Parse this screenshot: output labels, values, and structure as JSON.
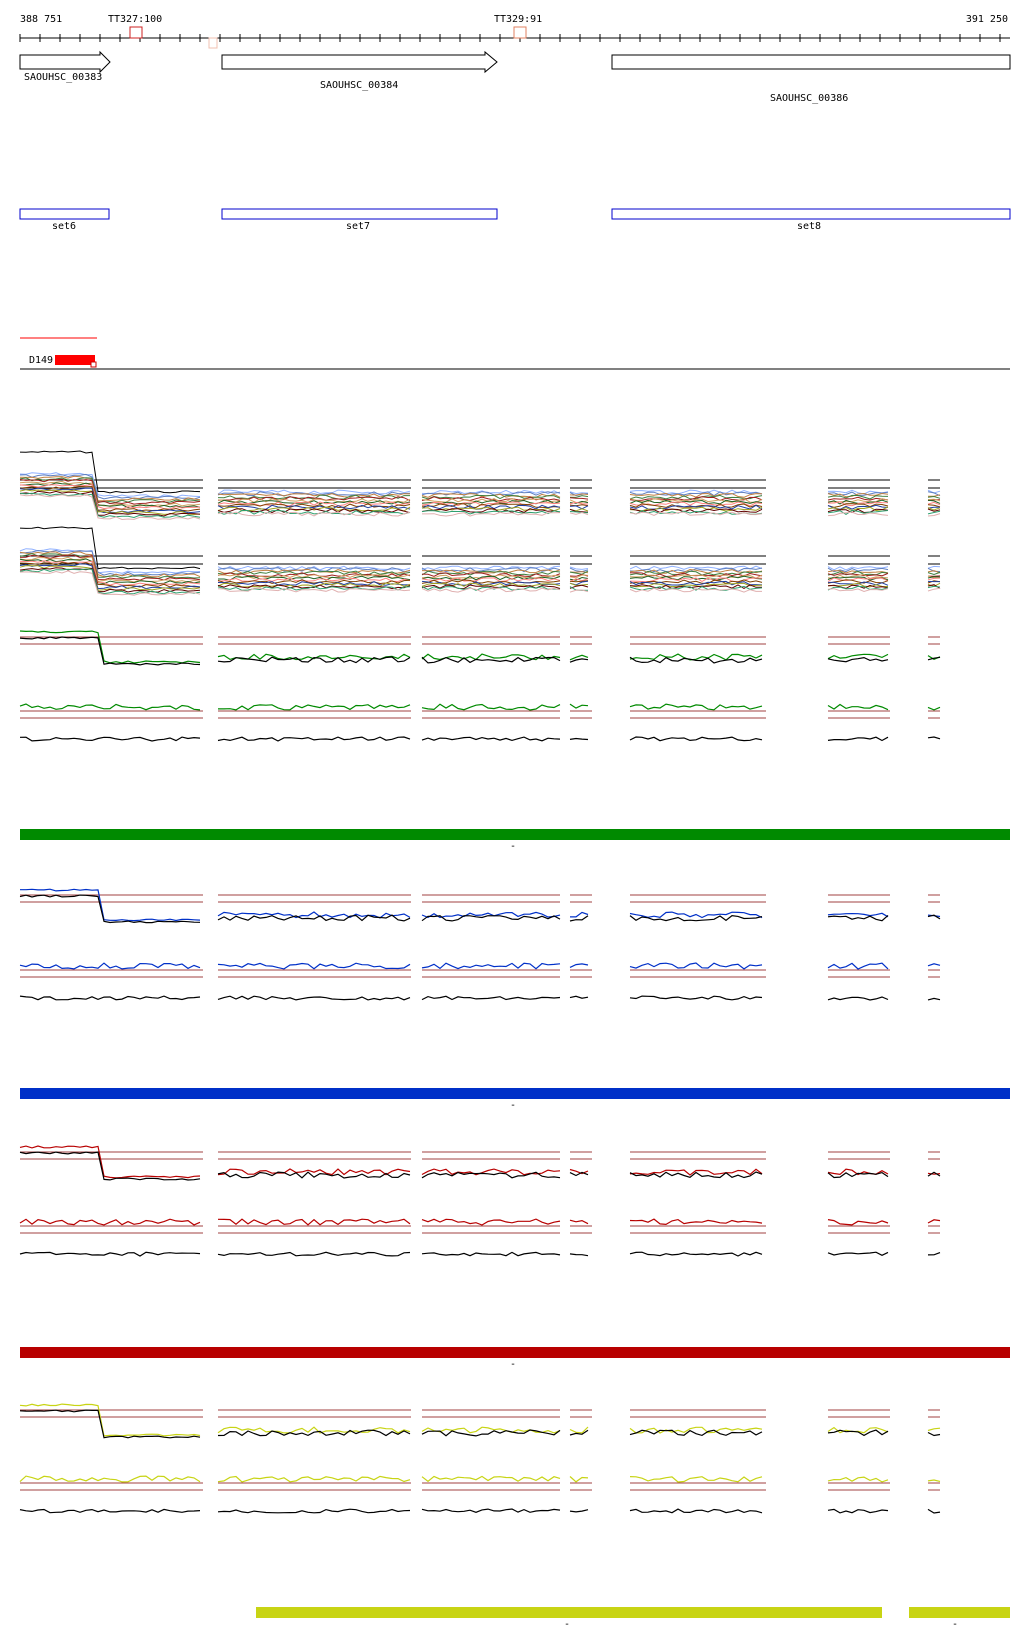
{
  "ruler": {
    "start_label": "388 751",
    "end_label": "391 250",
    "terminators": [
      {
        "label": "TT327:100"
      },
      {
        "label": "TT329:91"
      }
    ]
  },
  "genes": [
    {
      "id": "SAOUHSC_00383",
      "strand": "+"
    },
    {
      "id": "SAOUHSC_00384",
      "strand": "+"
    },
    {
      "id": "SAOUHSC_00386",
      "strand": "none"
    }
  ],
  "sets": [
    {
      "label": "set6"
    },
    {
      "label": "set7"
    },
    {
      "label": "set8"
    }
  ],
  "feature": {
    "label": "D149",
    "color": "#ff0000"
  },
  "colors": {
    "green": "#008a00",
    "blue": "#0030c8",
    "red": "#b80000",
    "yellow": "#c8d414",
    "black": "#000000",
    "threshold": "#a04040",
    "set_box": "#0000cc",
    "terminator": "#cc2020"
  },
  "condition_bars": [
    {
      "color": "#008a00",
      "mark": "-"
    },
    {
      "color": "#0030c8",
      "mark": "-"
    },
    {
      "color": "#b80000",
      "mark": "-"
    },
    {
      "color": "#c8d414",
      "mark": "-"
    }
  ],
  "yellow_bar_marks": [
    "-",
    "-"
  ]
}
